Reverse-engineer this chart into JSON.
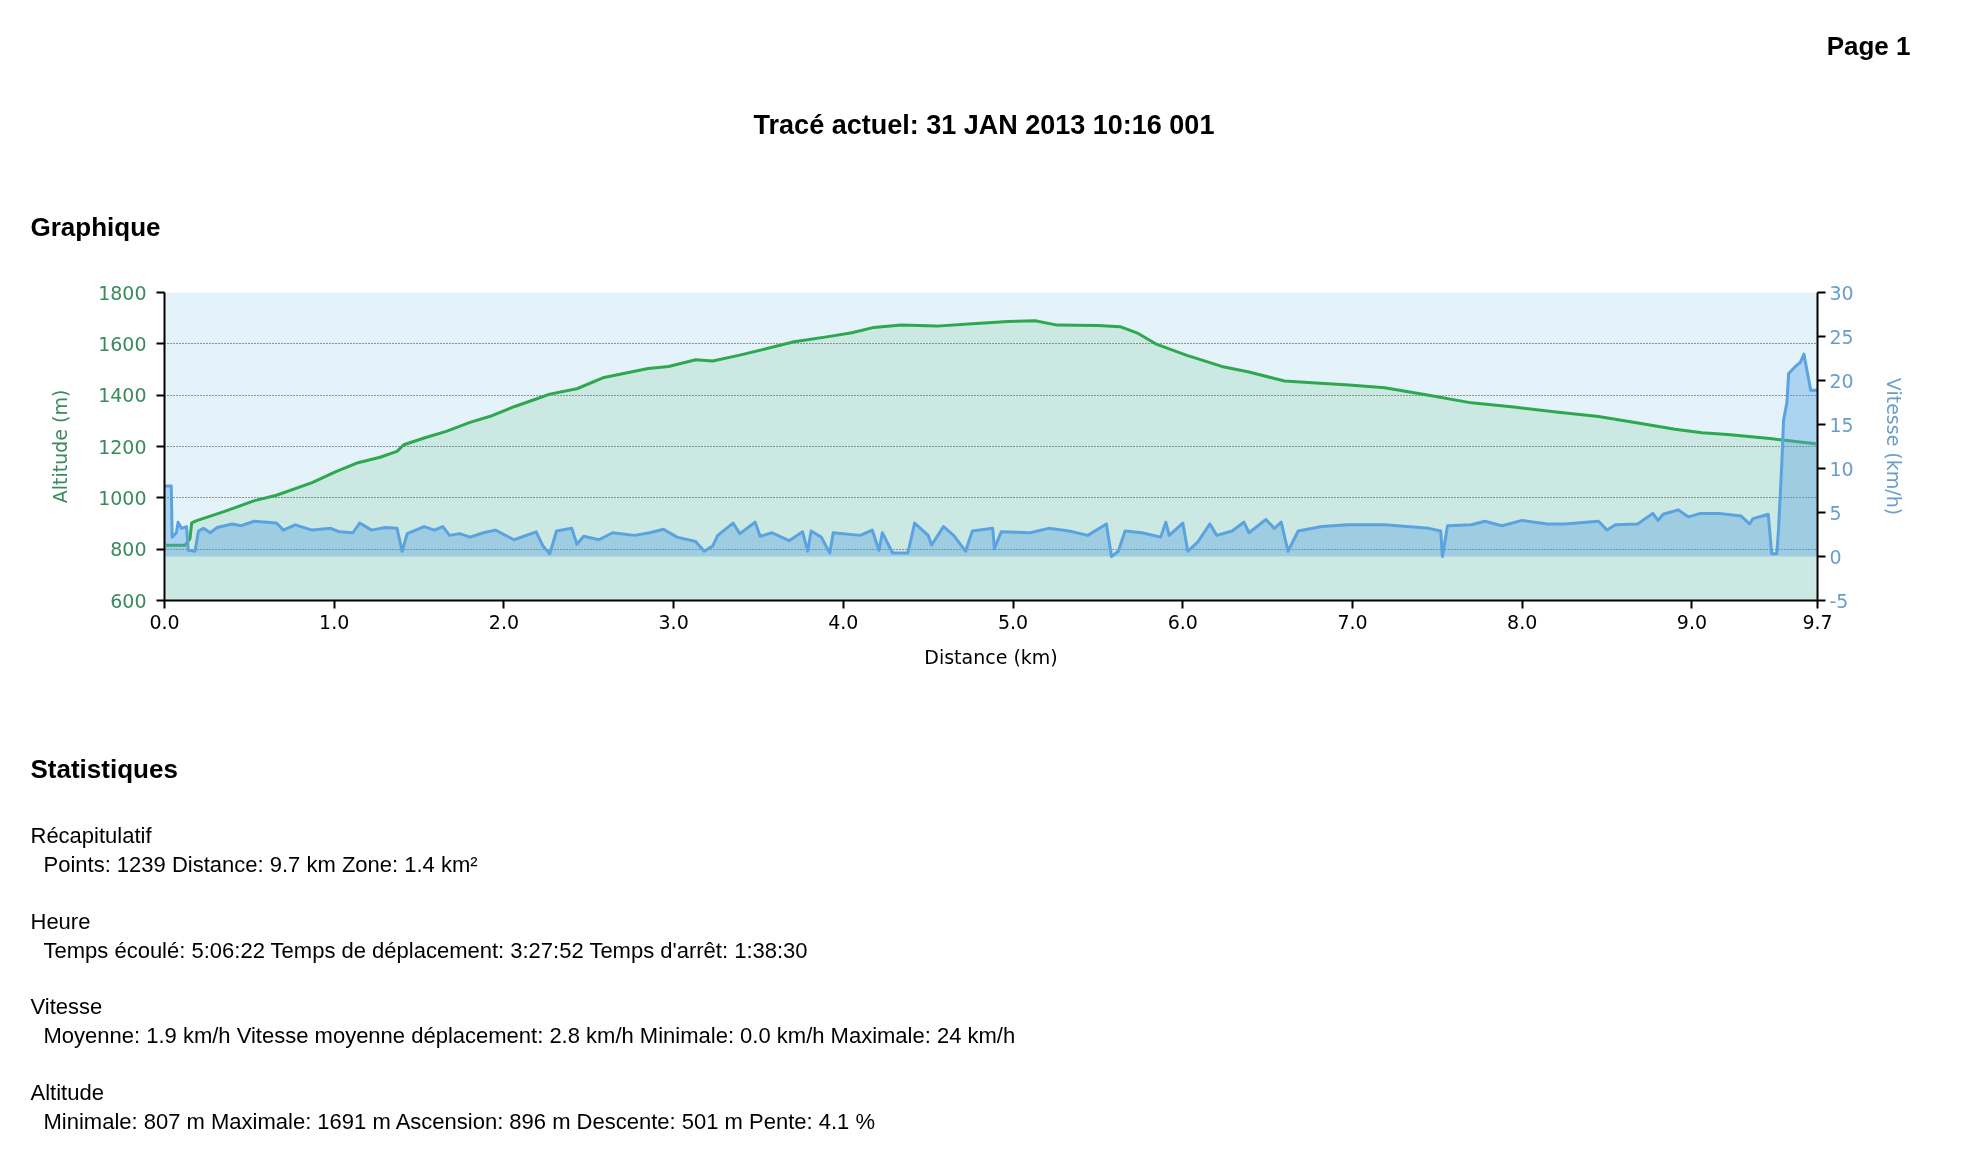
{
  "chart_data": {
    "type": "area",
    "title": "Tracé actuel: 31 JAN 2013 10:16 001",
    "xlabel": "Distance (km)",
    "ylabel": "Altitude (m)",
    "y2label": "Vitesse (km/h)",
    "series": [
      {
        "color": "#2ea84f",
        "x": [
          0.01,
          0.12,
          0.15,
          0.16,
          0.19,
          0.35,
          0.53,
          0.66,
          0.87,
          1.01,
          1.14,
          1.27,
          1.37,
          1.41,
          1.53,
          1.66,
          1.8,
          1.93,
          2.06,
          2.19,
          2.27,
          2.43,
          2.59,
          2.72,
          2.85,
          2.97,
          3.13,
          3.23,
          3.39,
          3.55,
          3.71,
          3.92,
          4.05,
          4.18,
          4.34,
          4.55,
          4.76,
          4.97,
          5.13,
          5.26,
          5.5,
          5.63,
          5.73,
          5.84,
          6.02,
          6.23,
          6.39,
          6.6,
          6.81,
          6.98,
          7.19,
          7.45,
          7.7,
          7.95,
          8.2,
          8.45,
          8.7,
          8.9,
          9.06,
          9.21,
          9.46,
          9.73
        ],
        "values": [
          815,
          815,
          841,
          902,
          911,
          946,
          989,
          1010,
          1059,
          1102,
          1137,
          1158,
          1181,
          1207,
          1233,
          1259,
          1294,
          1320,
          1355,
          1385,
          1404,
          1425,
          1469,
          1486,
          1504,
          1512,
          1538,
          1533,
          1556,
          1582,
          1608,
          1629,
          1643,
          1664,
          1673,
          1669,
          1678,
          1687,
          1690,
          1673,
          1671,
          1667,
          1643,
          1600,
          1556,
          1512,
          1490,
          1455,
          1446,
          1440,
          1429,
          1400,
          1370,
          1354,
          1334,
          1317,
          1290,
          1267,
          1254,
          1247,
          1231,
          1211
        ]
      },
      {
        "color": "#5ba3e0",
        "axis": "y2",
        "x": [
          0.0,
          0.04,
          0.045,
          0.07,
          0.08,
          0.1,
          0.13,
          0.14,
          0.18,
          0.2,
          0.23,
          0.27,
          0.31,
          0.4,
          0.45,
          0.53,
          0.66,
          0.7,
          0.77,
          0.87,
          0.98,
          1.03,
          1.11,
          1.15,
          1.22,
          1.3,
          1.37,
          1.4,
          1.43,
          1.53,
          1.59,
          1.64,
          1.68,
          1.74,
          1.8,
          1.88,
          1.95,
          2.06,
          2.19,
          2.23,
          2.27,
          2.31,
          2.4,
          2.43,
          2.47,
          2.56,
          2.64,
          2.77,
          2.86,
          2.94,
          3.02,
          3.13,
          3.18,
          3.23,
          3.26,
          3.35,
          3.39,
          3.48,
          3.51,
          3.58,
          3.68,
          3.76,
          3.79,
          3.81,
          3.87,
          3.92,
          3.94,
          4.1,
          4.17,
          4.21,
          4.23,
          4.29,
          4.38,
          4.42,
          4.5,
          4.52,
          4.59,
          4.65,
          4.72,
          4.76,
          4.88,
          4.89,
          4.93,
          5.1,
          5.21,
          5.33,
          5.44,
          5.55,
          5.58,
          5.62,
          5.66,
          5.76,
          5.87,
          5.9,
          5.92,
          6.0,
          6.03,
          6.09,
          6.16,
          6.2,
          6.29,
          6.36,
          6.39,
          6.49,
          6.54,
          6.58,
          6.62,
          6.68,
          6.82,
          6.97,
          7.19,
          7.45,
          7.52,
          7.53,
          7.56,
          7.7,
          7.78,
          7.88,
          8.0,
          8.15,
          8.25,
          8.45,
          8.5,
          8.55,
          8.68,
          8.77,
          8.8,
          8.83,
          8.92,
          8.98,
          9.05,
          9.16,
          9.29,
          9.34,
          9.36,
          9.45,
          9.47,
          9.5,
          9.51,
          9.53,
          9.54,
          9.56,
          9.57,
          9.61,
          9.64,
          9.66,
          9.7,
          9.74
        ],
        "values": [
          8.0,
          8.0,
          2.2,
          2.7,
          3.9,
          3.2,
          3.4,
          0.7,
          0.6,
          2.9,
          3.2,
          2.7,
          3.3,
          3.7,
          3.5,
          4.0,
          3.8,
          3.0,
          3.6,
          3.0,
          3.2,
          2.8,
          2.7,
          3.8,
          3.0,
          3.3,
          3.2,
          0.6,
          2.6,
          3.4,
          3.0,
          3.4,
          2.4,
          2.6,
          2.2,
          2.7,
          3.0,
          1.9,
          2.8,
          1.2,
          0.3,
          2.9,
          3.2,
          1.4,
          2.3,
          1.9,
          2.7,
          2.4,
          2.7,
          3.1,
          2.2,
          1.7,
          0.6,
          1.2,
          2.4,
          3.8,
          2.6,
          3.9,
          2.3,
          2.7,
          1.8,
          2.8,
          0.6,
          2.9,
          2.2,
          0.4,
          2.7,
          2.4,
          3.0,
          0.7,
          2.7,
          0.4,
          0.4,
          3.8,
          2.4,
          1.3,
          3.4,
          2.4,
          0.6,
          2.9,
          3.2,
          0.9,
          2.8,
          2.7,
          3.2,
          2.9,
          2.4,
          3.7,
          0.0,
          0.6,
          2.9,
          2.7,
          2.2,
          3.9,
          2.4,
          3.8,
          0.6,
          1.7,
          3.7,
          2.4,
          2.9,
          3.9,
          2.7,
          4.2,
          3.2,
          3.9,
          0.6,
          2.9,
          3.4,
          3.6,
          3.6,
          3.2,
          2.9,
          0.0,
          3.5,
          3.6,
          4.0,
          3.5,
          4.1,
          3.7,
          3.7,
          4.0,
          3.0,
          3.6,
          3.7,
          4.9,
          4.1,
          4.8,
          5.3,
          4.5,
          4.9,
          4.9,
          4.6,
          3.7,
          4.3,
          4.8,
          0.3,
          0.3,
          3.0,
          10.7,
          15.5,
          17.5,
          20.8,
          21.6,
          22.1,
          23.0,
          18.9,
          18.9
        ]
      }
    ],
    "xlim": [
      0,
      9.74
    ],
    "xticks": [
      {
        "value": 0,
        "label": "0.0"
      },
      {
        "value": 1,
        "label": "1.0"
      },
      {
        "value": 2,
        "label": "2.0"
      },
      {
        "value": 3,
        "label": "3.0"
      },
      {
        "value": 4,
        "label": "4.0"
      },
      {
        "value": 5,
        "label": "5.0"
      },
      {
        "value": 6,
        "label": "6.0"
      },
      {
        "value": 7,
        "label": "7.0"
      },
      {
        "value": 8,
        "label": "8.0"
      },
      {
        "value": 9,
        "label": "9.0"
      },
      {
        "value": 9.74,
        "label": "9.7"
      }
    ],
    "ylim": [
      600,
      1800
    ],
    "yticks": [
      600,
      800,
      1000,
      1200,
      1400,
      1600,
      1800
    ],
    "y2lim": [
      -5,
      30
    ],
    "y2ticks": [
      {
        "value": -5,
        "label": "-5"
      },
      0,
      5,
      10,
      15,
      20,
      25,
      30
    ],
    "grid": "y",
    "annotations": [
      "Page 1",
      "Graphique",
      "Statistiques",
      "Récapitulatif",
      "Points: 1239  Distance: 9.7 km  Zone: 1.4 km²",
      "Heure",
      "Temps écoulé: 5:06:22  Temps de déplacement: 3:27:52  Temps d'arrêt: 1:38:30",
      "Vitesse",
      "Moyenne: 1.9 km/h  Vitesse moyenne déplacement: 2.8 km/h  Minimale: 0.0 km/h  Maximale: 24 km/h",
      "Altitude",
      "Minimale: 807 m  Maximale: 1691 m  Ascension: 896 m  Descente: 501 m  Pente: 4.1 %"
    ]
  }
}
